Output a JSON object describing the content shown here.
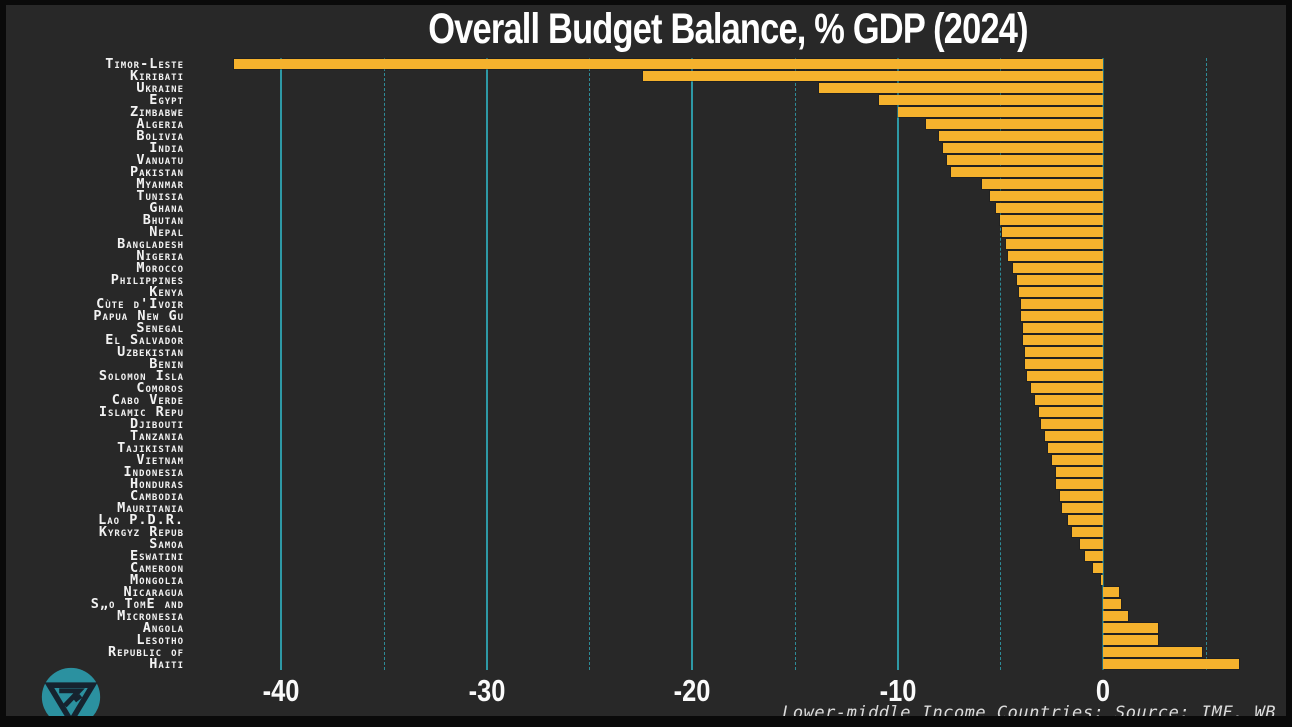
{
  "title": "Overall Budget Balance, % GDP (2024)",
  "footer": "Lower-middle Income Countries; Source: IMF, WB",
  "colors": {
    "background": "#282828",
    "frame": "#0a0a0a",
    "bar": "#F5B22D",
    "grid_teal": "#2E99A6",
    "text": "#F2F2F2",
    "logo_teal": "#2B91A0",
    "logo_dark": "#16232F"
  },
  "logo": {
    "name": "triangle-emblem-logo"
  },
  "chart_data": {
    "type": "bar",
    "orientation": "horizontal",
    "title": "Overall Budget Balance, % GDP (2024)",
    "subtitle": "Lower-middle Income Countries; Source: IMF, WB",
    "unit": "% of GDP",
    "xlabel": "",
    "ylabel": "",
    "xlim": [
      -45,
      8
    ],
    "x_ticks": [
      -40,
      -30,
      -20,
      -10,
      0
    ],
    "x_tick_labels": [
      "-40",
      "-30",
      "-20",
      "-10",
      "0"
    ],
    "x_gridlines_dashed": [
      -35,
      -25,
      -15,
      -5,
      5
    ],
    "grid": true,
    "legend": false,
    "categories": [
      "Timor-Leste",
      "Kiribati",
      "Ukraine",
      "Egypt",
      "Zimbabwe",
      "Algeria",
      "Bolivia",
      "India",
      "Vanuatu",
      "Pakistan",
      "Myanmar",
      "Tunisia",
      "Ghana",
      "Bhutan",
      "Nepal",
      "Bangladesh",
      "Nigeria",
      "Morocco",
      "Philippines",
      "Kenya",
      "Cùte d'Ivoir",
      "Papua New Gu",
      "Senegal",
      "El Salvador",
      "Uzbekistan",
      "Benin",
      "Solomon Isla",
      "Comoros",
      "Cabo Verde",
      "Islamic Repu",
      "Djibouti",
      "Tanzania",
      "Tajikistan",
      "Vietnam",
      "Indonesia",
      "Honduras",
      "Cambodia",
      "Mauritania",
      "Lao P.D.R.",
      "Kyrgyz Repub",
      "Samoa",
      "Eswatini",
      "Cameroon",
      "Mongolia",
      "Nicaragua",
      "S„o TomE and",
      "Micronesia",
      "Angola",
      "Lesotho",
      "Republic of",
      "Haiti"
    ],
    "values": [
      -42.3,
      -22.4,
      -13.8,
      -10.9,
      -10.0,
      -8.6,
      -8.0,
      -7.8,
      -7.6,
      -7.4,
      -5.9,
      -5.5,
      -5.2,
      -5.0,
      -4.9,
      -4.7,
      -4.6,
      -4.4,
      -4.2,
      -4.1,
      -4.0,
      -4.0,
      -3.9,
      -3.9,
      -3.8,
      -3.8,
      -3.7,
      -3.5,
      -3.3,
      -3.1,
      -3.0,
      -2.8,
      -2.7,
      -2.5,
      -2.3,
      -2.3,
      -2.1,
      -2.0,
      -1.7,
      -1.5,
      -1.1,
      -0.9,
      -0.5,
      -0.1,
      0.8,
      0.9,
      1.2,
      2.7,
      2.7,
      4.8,
      6.6
    ]
  }
}
